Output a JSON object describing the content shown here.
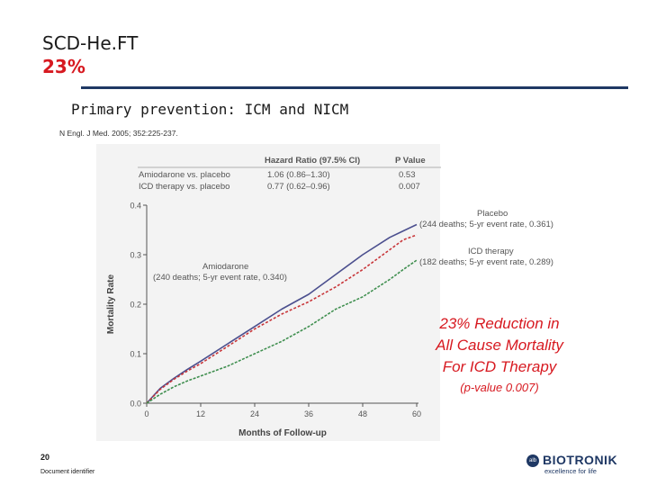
{
  "slide": {
    "title_line1": "SCD-He.FT",
    "title_line2": "23%",
    "subtitle": "Primary prevention: ICM and NICM",
    "citation": "N Engl. J Med. 2005; 352:225-237.",
    "page_number": "20",
    "doc_identifier": "Document identifier",
    "accent_color": "#d71920",
    "rule_color": "#1f3864"
  },
  "callout": {
    "line1": "23% Reduction in",
    "line2": "All Cause Mortality",
    "line3": "For ICD Therapy",
    "pvalue": "(p-value 0.007)"
  },
  "logo": {
    "badge": "alb",
    "brand": "BIOTRONIK",
    "tagline": "excellence for life"
  },
  "chart_data": {
    "type": "line",
    "xlabel": "Months of Follow-up",
    "ylabel": "Mortality Rate",
    "xlim": [
      0,
      60
    ],
    "ylim": [
      0,
      0.4
    ],
    "x_ticks": [
      "0",
      "12",
      "24",
      "36",
      "48",
      "60"
    ],
    "y_ticks": [
      "0.0",
      "0.1",
      "0.2",
      "0.3",
      "0.4"
    ],
    "table": {
      "headers": [
        "",
        "Hazard Ratio (97.5% CI)",
        "P Value"
      ],
      "rows": [
        [
          "Amiodarone vs. placebo",
          "1.06 (0.86–1.30)",
          "0.53"
        ],
        [
          "ICD therapy vs. placebo",
          "0.77 (0.62–0.96)",
          "0.007"
        ]
      ]
    },
    "annotations": [
      {
        "series": "Placebo",
        "line1": "Placebo",
        "line2": "(244 deaths; 5-yr event rate, 0.361)"
      },
      {
        "series": "ICD therapy",
        "line1": "ICD therapy",
        "line2": "(182 deaths; 5-yr event rate, 0.289)"
      },
      {
        "series": "Amiodarone",
        "line1": "Amiodarone",
        "line2": "(240 deaths; 5-yr event rate, 0.340)"
      }
    ],
    "series": [
      {
        "name": "Placebo",
        "color": "#4b4f8e",
        "x": [
          0,
          3,
          6,
          9,
          12,
          18,
          24,
          30,
          36,
          42,
          48,
          54,
          57,
          60
        ],
        "y": [
          0,
          0.03,
          0.05,
          0.068,
          0.085,
          0.12,
          0.155,
          0.19,
          0.22,
          0.26,
          0.3,
          0.335,
          0.348,
          0.361
        ]
      },
      {
        "name": "Amiodarone",
        "color": "#c8363a",
        "x": [
          0,
          3,
          6,
          9,
          12,
          18,
          24,
          30,
          36,
          42,
          48,
          54,
          57,
          60
        ],
        "y": [
          0,
          0.028,
          0.048,
          0.065,
          0.08,
          0.115,
          0.15,
          0.18,
          0.205,
          0.235,
          0.27,
          0.31,
          0.33,
          0.34
        ]
      },
      {
        "name": "ICD therapy",
        "color": "#3e8e4e",
        "x": [
          0,
          3,
          6,
          9,
          12,
          18,
          24,
          30,
          36,
          42,
          48,
          54,
          57,
          60
        ],
        "y": [
          0,
          0.018,
          0.033,
          0.045,
          0.055,
          0.075,
          0.1,
          0.125,
          0.155,
          0.19,
          0.215,
          0.25,
          0.27,
          0.289
        ]
      }
    ]
  }
}
